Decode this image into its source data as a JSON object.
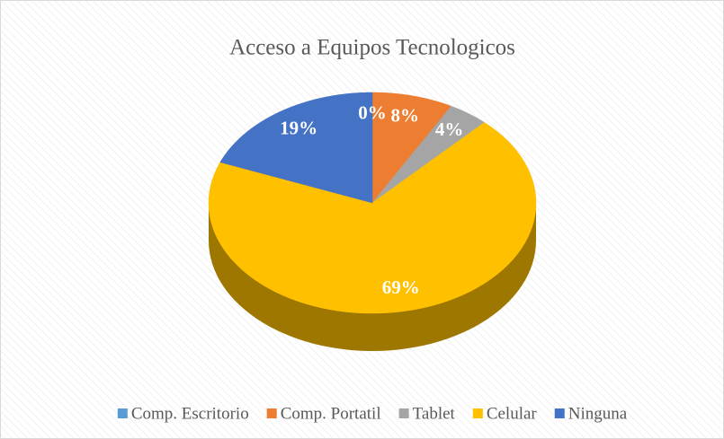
{
  "chart_data": {
    "type": "pie",
    "title": "Acceso a Equipos Tecnologicos",
    "categories": [
      "Comp. Escritorio",
      "Comp. Portatil",
      "Tablet",
      "Celular",
      "Ninguna"
    ],
    "values": [
      0,
      8,
      4,
      69,
      19
    ],
    "value_labels": [
      "0%",
      "8%",
      "4%",
      "69%",
      "19%"
    ],
    "colors": [
      "#5b9bd5",
      "#ed7d31",
      "#a5a5a5",
      "#ffc000",
      "#4472c4"
    ],
    "legend": "bottom"
  }
}
